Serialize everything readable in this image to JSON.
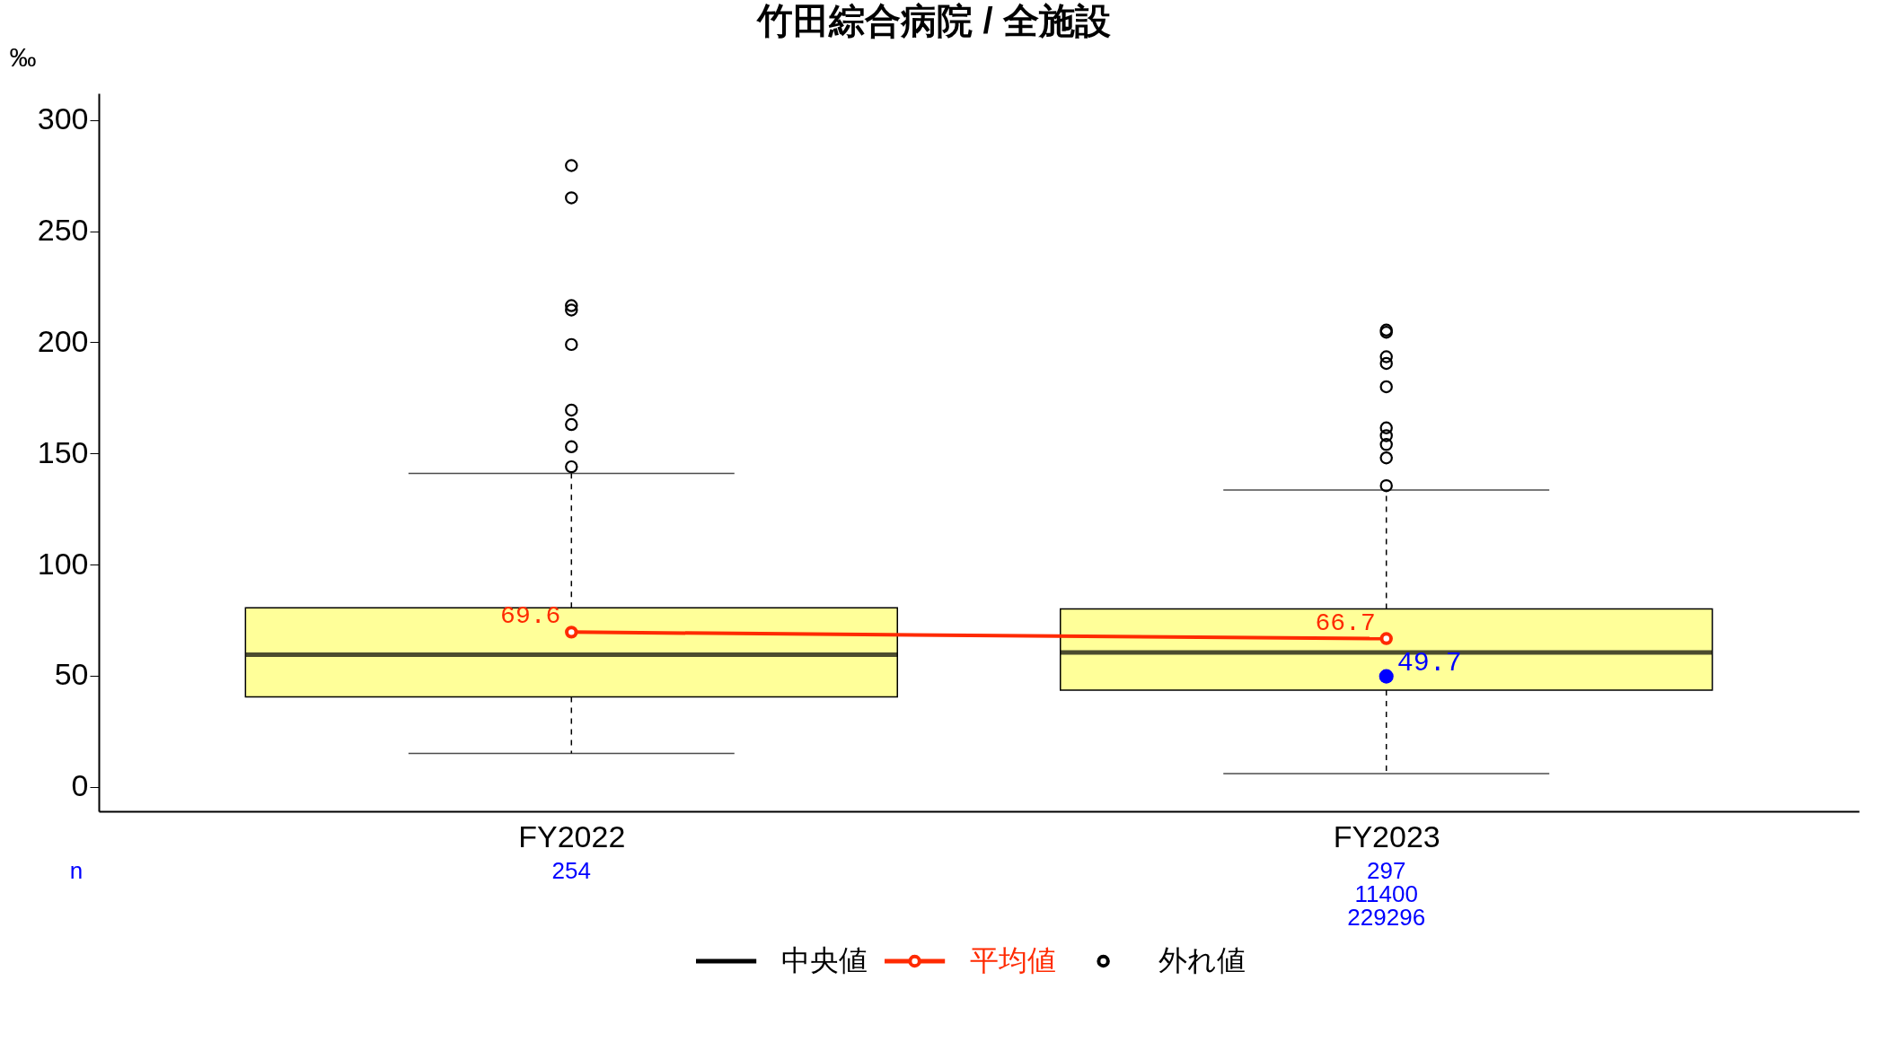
{
  "chart_data": {
    "type": "box",
    "title": "竹田綜合病院 / 全施設",
    "ylabel": "‰",
    "categories": [
      "FY2022",
      "FY2023"
    ],
    "ylim": [
      -11,
      312
    ],
    "yticks": [
      0,
      50,
      100,
      150,
      200,
      250,
      300
    ],
    "grid": false,
    "legend": "bottom",
    "series": [
      {
        "name": "中央値",
        "type": "box",
        "color": "#000000",
        "colors": [
          "#ffff99",
          "#ffff99"
        ],
        "boxes": [
          {
            "low": 15,
            "q1": 40.5,
            "median": 59.5,
            "q3": 80.5,
            "high": 141
          },
          {
            "low": 6,
            "q1": 43.5,
            "median": 60.5,
            "q3": 80,
            "high": 133.5
          }
        ]
      },
      {
        "name": "平均値",
        "type": "line",
        "color": "#ff2a00",
        "marker": "circle",
        "data_labels": true,
        "values": [
          69.6,
          66.7
        ]
      },
      {
        "name": "外れ値",
        "type": "scatter",
        "color": "#000000",
        "marker": "circle",
        "x": [
          "FY2022",
          "FY2022",
          "FY2022",
          "FY2022",
          "FY2022",
          "FY2022",
          "FY2022",
          "FY2022",
          "FY2022",
          "FY2023",
          "FY2023",
          "FY2023",
          "FY2023",
          "FY2023",
          "FY2023",
          "FY2023",
          "FY2023",
          "FY2023",
          "FY2023"
        ],
        "values": [
          279.5,
          265,
          216.5,
          214.5,
          199,
          169.5,
          163,
          153,
          144,
          205.5,
          204.5,
          193.5,
          190.5,
          180,
          161.5,
          158,
          154,
          148,
          135.5
        ]
      },
      {
        "type": "scatter",
        "color": "#0000ff",
        "marker": "circle",
        "x": [
          "FY2023"
        ],
        "values": [
          49.7
        ],
        "data_labels": true
      }
    ],
    "annotations": [
      "n",
      "254",
      "297\n11400\n229296"
    ]
  }
}
